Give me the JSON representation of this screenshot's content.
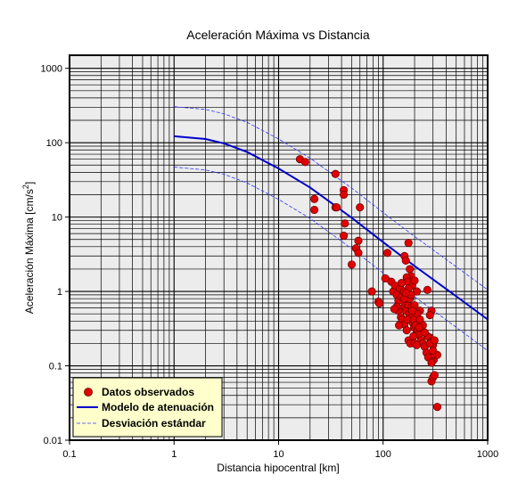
{
  "chart_data": {
    "type": "scatter",
    "title": "Aceleración Máxima vs Distancia",
    "xlabel": "Distancia hipocentral [km]",
    "ylabel_main": "Aceleración Máxima [cm/s",
    "ylabel_sup": "2",
    "ylabel_close": "]",
    "xscale": "log",
    "yscale": "log",
    "xlim": [
      0.1,
      1000
    ],
    "ylim": [
      0.01,
      1500
    ],
    "xticks": [
      {
        "value": 0.1,
        "label": "0.1"
      },
      {
        "value": 1,
        "label": "1"
      },
      {
        "value": 10,
        "label": "10"
      },
      {
        "value": 100,
        "label": "100"
      },
      {
        "value": 1000,
        "label": "1000"
      }
    ],
    "yticks": [
      {
        "value": 0.01,
        "label": "0.01"
      },
      {
        "value": 0.1,
        "label": "0.1"
      },
      {
        "value": 1,
        "label": "1"
      },
      {
        "value": 10,
        "label": "10"
      },
      {
        "value": 100,
        "label": "100"
      },
      {
        "value": 1000,
        "label": "1000"
      }
    ],
    "grid": true,
    "legend_position": "bottom-left",
    "colors": {
      "points": "#e00000",
      "model": "#0000cc",
      "deviation": "#3333ff",
      "plot_bg": "#ececec",
      "legend_bg": "#ffffcc"
    },
    "series": [
      {
        "name": "Datos observados",
        "kind": "points",
        "points": [
          [
            16,
            60
          ],
          [
            18,
            55
          ],
          [
            35,
            38
          ],
          [
            22,
            17.5
          ],
          [
            22,
            12.5
          ],
          [
            35,
            13.5
          ],
          [
            36,
            13.5
          ],
          [
            42,
            23
          ],
          [
            42,
            20
          ],
          [
            43,
            8.2
          ],
          [
            42,
            5.6
          ],
          [
            60,
            13.5
          ],
          [
            58,
            4.8
          ],
          [
            55,
            3.8
          ],
          [
            58,
            3.3
          ],
          [
            50,
            2.3
          ],
          [
            110,
            3.3
          ],
          [
            78,
            1.0
          ],
          [
            90,
            0.73
          ],
          [
            92,
            0.69
          ],
          [
            105,
            1.5
          ],
          [
            175,
            4.5
          ],
          [
            160,
            3.0
          ],
          [
            165,
            2.6
          ],
          [
            180,
            2.0
          ],
          [
            185,
            1.6
          ],
          [
            168,
            1.55
          ],
          [
            172,
            1.35
          ],
          [
            190,
            1.2
          ],
          [
            200,
            1.4
          ],
          [
            210,
            1.0
          ],
          [
            225,
            0.55
          ],
          [
            265,
            1.05
          ],
          [
            290,
            0.55
          ],
          [
            280,
            0.48
          ],
          [
            120,
            1.35
          ],
          [
            125,
            1.0
          ],
          [
            130,
            1.2
          ],
          [
            135,
            0.9
          ],
          [
            140,
            0.75
          ],
          [
            145,
            1.1
          ],
          [
            150,
            0.85
          ],
          [
            155,
            0.6
          ],
          [
            158,
            1.0
          ],
          [
            162,
            0.7
          ],
          [
            165,
            0.55
          ],
          [
            170,
            0.95
          ],
          [
            175,
            0.65
          ],
          [
            178,
            0.5
          ],
          [
            180,
            0.8
          ],
          [
            185,
            0.45
          ],
          [
            188,
            0.62
          ],
          [
            192,
            0.38
          ],
          [
            195,
            0.42
          ],
          [
            198,
            0.33
          ],
          [
            205,
            0.35
          ],
          [
            210,
            0.28
          ],
          [
            215,
            0.3
          ],
          [
            220,
            0.26
          ],
          [
            230,
            0.22
          ],
          [
            240,
            0.2
          ],
          [
            250,
            0.18
          ],
          [
            260,
            0.15
          ],
          [
            270,
            0.13
          ],
          [
            140,
            0.55
          ],
          [
            148,
            0.45
          ],
          [
            152,
            0.42
          ],
          [
            160,
            0.36
          ],
          [
            168,
            0.3
          ],
          [
            175,
            0.22
          ],
          [
            182,
            0.2
          ],
          [
            135,
            0.62
          ],
          [
            128,
            0.58
          ],
          [
            142,
            0.35
          ],
          [
            195,
            0.25
          ],
          [
            200,
            0.2
          ],
          [
            210,
            0.19
          ],
          [
            280,
            0.24
          ],
          [
            295,
            0.21
          ],
          [
            300,
            0.19
          ],
          [
            305,
            0.12
          ],
          [
            290,
            0.11
          ],
          [
            310,
            0.14
          ],
          [
            330,
            0.14
          ],
          [
            290,
            0.062
          ],
          [
            300,
            0.07
          ],
          [
            310,
            0.075
          ],
          [
            330,
            0.028
          ],
          [
            160,
            0.8
          ],
          [
            175,
            1.1
          ],
          [
            185,
            0.9
          ],
          [
            200,
            0.65
          ],
          [
            212,
            0.5
          ],
          [
            225,
            0.42
          ],
          [
            240,
            0.35
          ],
          [
            265,
            0.25
          ],
          [
            280,
            0.2
          ],
          [
            150,
            1.3
          ],
          [
            165,
            0.95
          ],
          [
            170,
            0.42
          ],
          [
            190,
            0.55
          ],
          [
            220,
            0.33
          ],
          [
            250,
            0.28
          ],
          [
            300,
            0.16
          ],
          [
            310,
            0.22
          ]
        ]
      },
      {
        "name": "Modelo de atenuación",
        "kind": "line",
        "points": [
          [
            1,
            122
          ],
          [
            2,
            112
          ],
          [
            3,
            98
          ],
          [
            5,
            75
          ],
          [
            10,
            45
          ],
          [
            20,
            25
          ],
          [
            50,
            9.8
          ],
          [
            100,
            4.6
          ],
          [
            200,
            2.2
          ],
          [
            500,
            0.86
          ],
          [
            1000,
            0.42
          ]
        ]
      },
      {
        "name": "Desviación estándar",
        "kind": "dashed-band",
        "upper": [
          [
            1,
            305
          ],
          [
            2,
            280
          ],
          [
            3,
            245
          ],
          [
            5,
            188
          ],
          [
            10,
            112
          ],
          [
            20,
            62
          ],
          [
            50,
            24.5
          ],
          [
            100,
            11.5
          ],
          [
            200,
            5.5
          ],
          [
            500,
            2.15
          ],
          [
            1000,
            1.05
          ]
        ],
        "lower": [
          [
            1,
            47
          ],
          [
            2,
            43
          ],
          [
            3,
            37.7
          ],
          [
            5,
            28.8
          ],
          [
            10,
            17.3
          ],
          [
            20,
            9.6
          ],
          [
            50,
            3.77
          ],
          [
            100,
            1.77
          ],
          [
            200,
            0.85
          ],
          [
            500,
            0.33
          ],
          [
            1000,
            0.16
          ]
        ]
      }
    ]
  }
}
